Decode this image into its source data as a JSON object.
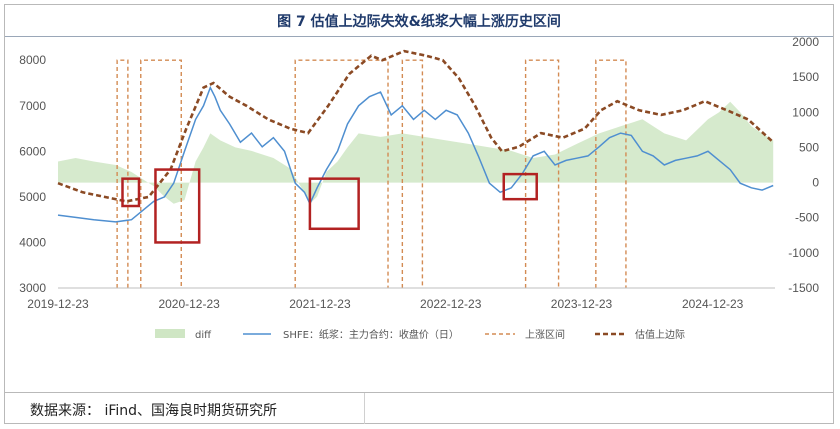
{
  "title": "图 7 估值上边际失效&纸浆大幅上涨历史区间",
  "source": "数据来源：  iFind、国海良时期货研究所",
  "chart_data": {
    "type": "line",
    "x_ticks": [
      "2019-12-23",
      "2020-12-23",
      "2021-12-23",
      "2022-12-23",
      "2023-12-23",
      "2024-12-23"
    ],
    "y_left": {
      "ticks": [
        3000,
        4000,
        5000,
        6000,
        7000,
        8000
      ],
      "range": [
        3000,
        8400
      ]
    },
    "y_right": {
      "ticks": [
        -1500,
        -1000,
        -500,
        0,
        500,
        1000,
        1500,
        2000
      ],
      "range": [
        -1500,
        2000
      ]
    },
    "legend": [
      "diff",
      "SHFE：纸浆：主力合约：收盘价（日）",
      "上涨区间",
      "估值上边际"
    ],
    "colors": {
      "diff": "#cfe6c4",
      "price": "#4f8fd0",
      "rise": "#d38b53",
      "upper": "#8b4a24",
      "box": "#b22222"
    },
    "series": [
      {
        "name": "SHFE：纸浆：主力合约：收盘价（日）",
        "points": [
          [
            "2019-12-23",
            4600
          ],
          [
            "2020-02-10",
            4550
          ],
          [
            "2020-04-01",
            4500
          ],
          [
            "2020-06-01",
            4450
          ],
          [
            "2020-07-15",
            4500
          ],
          [
            "2020-08-15",
            4700
          ],
          [
            "2020-09-15",
            4900
          ],
          [
            "2020-10-15",
            5000
          ],
          [
            "2020-11-10",
            5300
          ],
          [
            "2020-12-10",
            6000
          ],
          [
            "2021-01-10",
            6700
          ],
          [
            "2021-02-01",
            7000
          ],
          [
            "2021-02-20",
            7400
          ],
          [
            "2021-03-05",
            7200
          ],
          [
            "2021-03-20",
            6900
          ],
          [
            "2021-04-15",
            6600
          ],
          [
            "2021-05-15",
            6200
          ],
          [
            "2021-06-15",
            6400
          ],
          [
            "2021-07-15",
            6100
          ],
          [
            "2021-08-15",
            6300
          ],
          [
            "2021-09-15",
            6000
          ],
          [
            "2021-10-15",
            5300
          ],
          [
            "2021-11-10",
            5100
          ],
          [
            "2021-11-25",
            4850
          ],
          [
            "2021-12-15",
            5200
          ],
          [
            "2022-01-10",
            5600
          ],
          [
            "2022-02-10",
            6000
          ],
          [
            "2022-03-10",
            6600
          ],
          [
            "2022-04-10",
            7000
          ],
          [
            "2022-05-10",
            7200
          ],
          [
            "2022-06-10",
            7300
          ],
          [
            "2022-07-10",
            6800
          ],
          [
            "2022-08-10",
            7000
          ],
          [
            "2022-09-10",
            6700
          ],
          [
            "2022-10-10",
            6900
          ],
          [
            "2022-11-10",
            6700
          ],
          [
            "2022-12-10",
            6900
          ],
          [
            "2023-01-10",
            6800
          ],
          [
            "2023-02-10",
            6400
          ],
          [
            "2023-03-10",
            5900
          ],
          [
            "2023-04-10",
            5300
          ],
          [
            "2023-05-10",
            5100
          ],
          [
            "2023-06-10",
            5200
          ],
          [
            "2023-07-10",
            5500
          ],
          [
            "2023-08-10",
            5900
          ],
          [
            "2023-09-10",
            6000
          ],
          [
            "2023-10-10",
            5700
          ],
          [
            "2023-11-10",
            5800
          ],
          [
            "2023-12-10",
            5850
          ],
          [
            "2024-01-10",
            5900
          ],
          [
            "2024-02-10",
            6100
          ],
          [
            "2024-03-10",
            6300
          ],
          [
            "2024-04-10",
            6400
          ],
          [
            "2024-05-10",
            6350
          ],
          [
            "2024-06-10",
            6000
          ],
          [
            "2024-07-10",
            5900
          ],
          [
            "2024-08-10",
            5700
          ],
          [
            "2024-09-10",
            5800
          ],
          [
            "2024-10-10",
            5850
          ],
          [
            "2024-11-10",
            5900
          ],
          [
            "2024-12-10",
            6000
          ],
          [
            "2025-01-10",
            5800
          ],
          [
            "2025-02-10",
            5600
          ],
          [
            "2025-03-10",
            5300
          ],
          [
            "2025-04-10",
            5200
          ],
          [
            "2025-05-10",
            5150
          ],
          [
            "2025-06-10",
            5250
          ]
        ]
      },
      {
        "name": "估值上边际",
        "points": [
          [
            "2019-12-23",
            5300
          ],
          [
            "2020-03-01",
            5100
          ],
          [
            "2020-05-01",
            5000
          ],
          [
            "2020-07-01",
            4900
          ],
          [
            "2020-09-01",
            5000
          ],
          [
            "2020-11-01",
            5600
          ],
          [
            "2020-12-15",
            6500
          ],
          [
            "2021-02-01",
            7400
          ],
          [
            "2021-03-01",
            7500
          ],
          [
            "2021-04-15",
            7200
          ],
          [
            "2021-06-01",
            7000
          ],
          [
            "2021-08-01",
            6700
          ],
          [
            "2021-10-01",
            6500
          ],
          [
            "2021-11-20",
            6400
          ],
          [
            "2022-01-15",
            7000
          ],
          [
            "2022-03-15",
            7700
          ],
          [
            "2022-05-15",
            8100
          ],
          [
            "2022-06-15",
            8000
          ],
          [
            "2022-08-15",
            8200
          ],
          [
            "2022-10-15",
            8100
          ],
          [
            "2022-12-01",
            8000
          ],
          [
            "2023-01-15",
            7600
          ],
          [
            "2023-03-01",
            7000
          ],
          [
            "2023-04-15",
            6300
          ],
          [
            "2023-05-15",
            6000
          ],
          [
            "2023-07-01",
            6100
          ],
          [
            "2023-09-01",
            6400
          ],
          [
            "2023-11-01",
            6300
          ],
          [
            "2024-01-01",
            6500
          ],
          [
            "2024-02-15",
            6900
          ],
          [
            "2024-04-01",
            7100
          ],
          [
            "2024-06-01",
            6900
          ],
          [
            "2024-08-01",
            6800
          ],
          [
            "2024-10-01",
            6900
          ],
          [
            "2024-12-01",
            7100
          ],
          [
            "2025-02-01",
            6900
          ],
          [
            "2025-04-01",
            6700
          ],
          [
            "2025-06-10",
            6200
          ]
        ]
      }
    ],
    "diff_points": [
      [
        "2019-12-23",
        300
      ],
      [
        "2020-02-10",
        350
      ],
      [
        "2020-04-01",
        300
      ],
      [
        "2020-06-01",
        250
      ],
      [
        "2020-07-15",
        150
      ],
      [
        "2020-08-15",
        50
      ],
      [
        "2020-09-15",
        -50
      ],
      [
        "2020-10-15",
        -200
      ],
      [
        "2020-11-10",
        -300
      ],
      [
        "2020-12-10",
        -250
      ],
      [
        "2021-01-10",
        300
      ],
      [
        "2021-02-01",
        500
      ],
      [
        "2021-02-20",
        700
      ],
      [
        "2021-03-20",
        600
      ],
      [
        "2021-05-01",
        500
      ],
      [
        "2021-06-15",
        450
      ],
      [
        "2021-08-15",
        350
      ],
      [
        "2021-10-01",
        200
      ],
      [
        "2021-11-10",
        -150
      ],
      [
        "2021-11-25",
        -300
      ],
      [
        "2021-12-15",
        -200
      ],
      [
        "2022-01-10",
        150
      ],
      [
        "2022-02-10",
        300
      ],
      [
        "2022-03-10",
        500
      ],
      [
        "2022-04-10",
        700
      ],
      [
        "2022-06-10",
        650
      ],
      [
        "2022-08-10",
        700
      ],
      [
        "2022-10-10",
        650
      ],
      [
        "2022-12-10",
        600
      ],
      [
        "2023-02-10",
        550
      ],
      [
        "2023-04-10",
        500
      ],
      [
        "2023-06-10",
        450
      ],
      [
        "2023-08-10",
        350
      ],
      [
        "2023-10-10",
        400
      ],
      [
        "2023-12-10",
        550
      ],
      [
        "2024-02-10",
        700
      ],
      [
        "2024-04-10",
        800
      ],
      [
        "2024-06-10",
        900
      ],
      [
        "2024-08-10",
        700
      ],
      [
        "2024-10-10",
        600
      ],
      [
        "2024-12-10",
        900
      ],
      [
        "2025-01-10",
        1000
      ],
      [
        "2025-02-10",
        1150
      ],
      [
        "2025-03-10",
        1000
      ],
      [
        "2025-04-10",
        800
      ],
      [
        "2025-05-10",
        700
      ],
      [
        "2025-06-10",
        600
      ]
    ],
    "rise_intervals": [
      [
        "2020-06-05",
        "2020-07-05"
      ],
      [
        "2020-08-10",
        "2020-12-01"
      ],
      [
        "2021-10-15",
        "2022-07-01"
      ],
      [
        "2022-08-10",
        "2022-10-05"
      ],
      [
        "2023-07-20",
        "2023-10-20"
      ],
      [
        "2024-02-01",
        "2024-04-25"
      ]
    ],
    "markup_boxes": [
      {
        "x": [
          "2020-06-20",
          "2020-08-05"
        ],
        "y": [
          4800,
          5400
        ]
      },
      {
        "x": [
          "2020-09-20",
          "2021-01-20"
        ],
        "y": [
          4000,
          5600
        ]
      },
      {
        "x": [
          "2021-11-25",
          "2022-04-10"
        ],
        "y": [
          4300,
          5400
        ]
      },
      {
        "x": [
          "2023-05-20",
          "2023-08-20"
        ],
        "y": [
          4950,
          5500
        ]
      }
    ]
  }
}
